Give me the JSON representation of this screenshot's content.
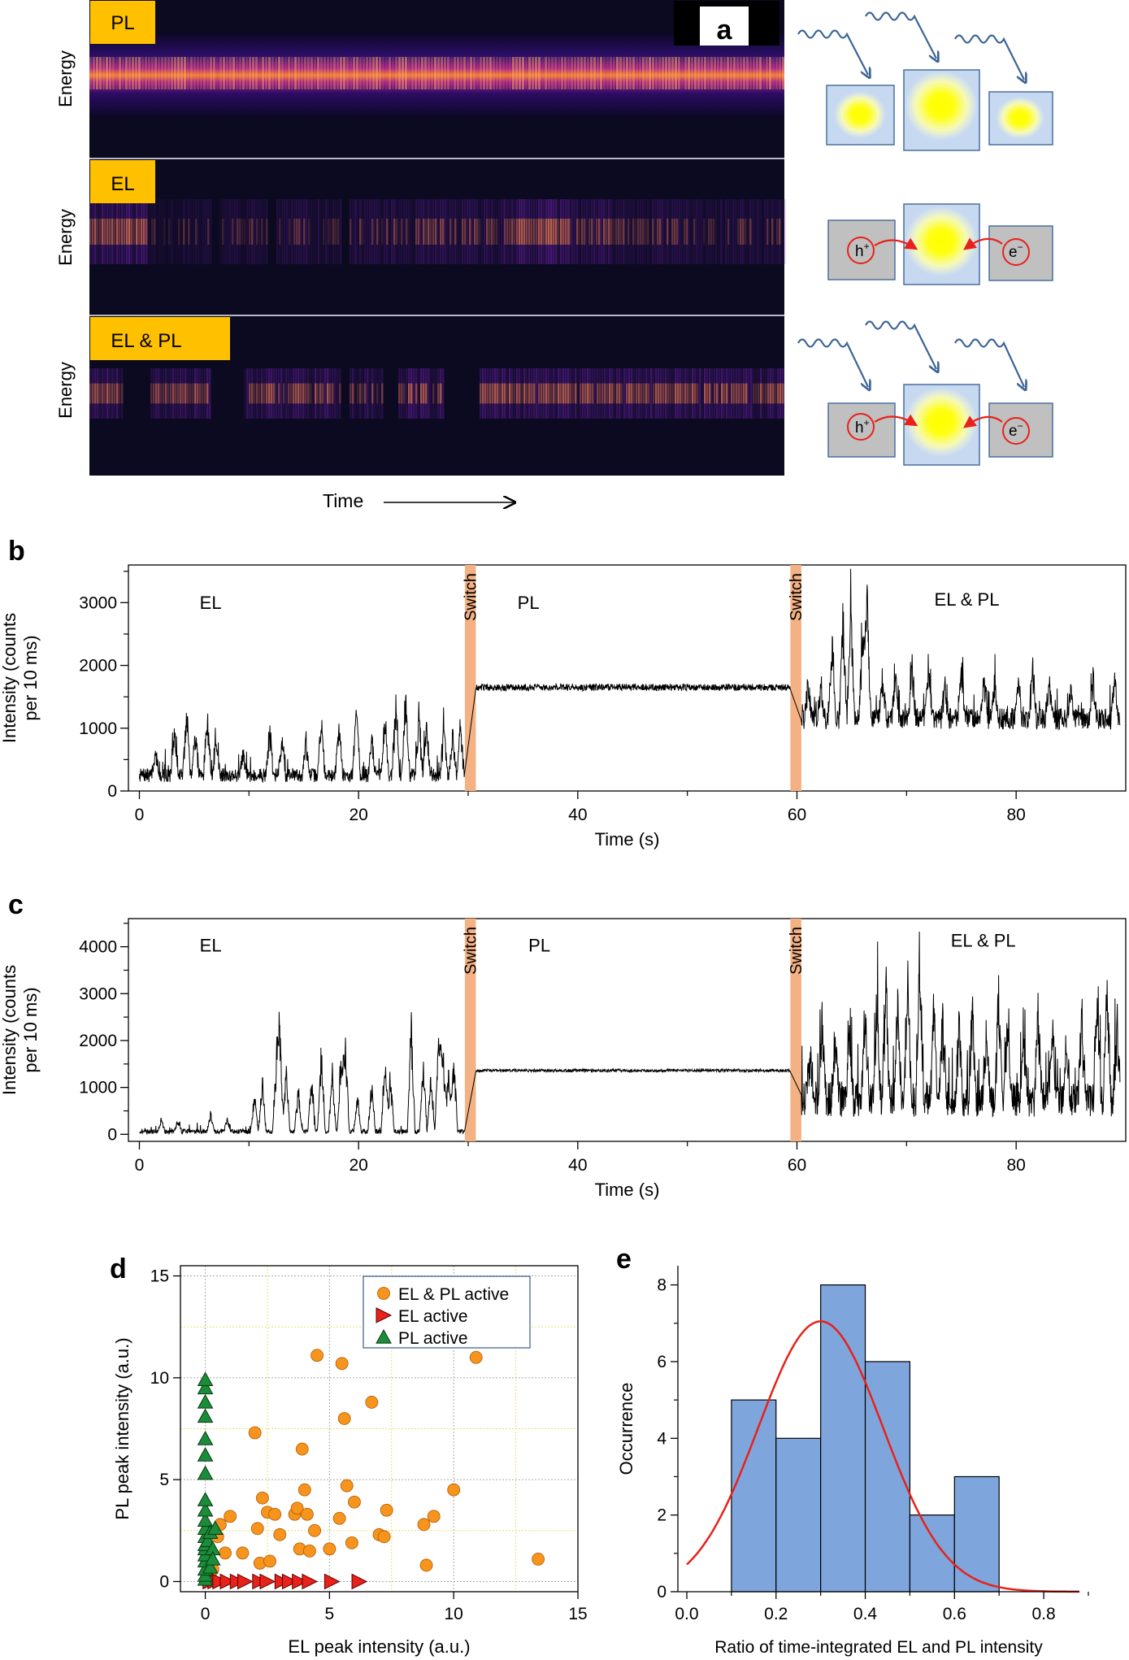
{
  "panel_a": {
    "letter": "a",
    "rows": [
      {
        "tag": "PL",
        "axis": "Energy",
        "mode": "pl"
      },
      {
        "tag": "EL",
        "axis": "Energy",
        "mode": "el"
      },
      {
        "tag": "EL & PL",
        "axis": "Energy",
        "mode": "both"
      }
    ],
    "time_label": "Time",
    "hole_label": "h",
    "hole_sup": "+",
    "electron_label": "e",
    "electron_sup": "−",
    "colors": {
      "light_blue": "#c6d9f1",
      "gray": "#c0c0c0",
      "yellow": "#ffff00",
      "tag": "#ffc000",
      "arrow": "#e8211a",
      "wave": "#3c6496"
    }
  },
  "chart_data": [
    {
      "id": "b",
      "type": "line",
      "letter": "b",
      "ylabel_line1": "Intensity (counts",
      "ylabel_line2": "per 10 ms)",
      "xlabel": "Time (s)",
      "xlim": [
        -1,
        90
      ],
      "ylim": [
        0,
        3600
      ],
      "xticks": [
        0,
        20,
        40,
        60,
        80
      ],
      "yticks": [
        0,
        1000,
        2000,
        3000
      ],
      "switch_label": "Switch",
      "switch_regions": [
        [
          29.7,
          30.7
        ],
        [
          59.4,
          60.4
        ]
      ],
      "switch_color": "#f4b183",
      "region_labels": [
        {
          "text": "EL",
          "x": 6.5,
          "y": 2900
        },
        {
          "text": "PL",
          "x": 35.5,
          "y": 2900
        },
        {
          "text": "EL & PL",
          "x": 75.5,
          "y": 2950
        }
      ],
      "segments": [
        {
          "name": "EL",
          "t0": 0,
          "t1": 29.7,
          "baseline": 250,
          "noise": 110,
          "spikes": [
            [
              1.5,
              400
            ],
            [
              3.2,
              800
            ],
            [
              4.3,
              1300
            ],
            [
              5.1,
              900
            ],
            [
              6.2,
              1200
            ],
            [
              7.0,
              700
            ],
            [
              9.5,
              450
            ],
            [
              11.9,
              900
            ],
            [
              13.0,
              800
            ],
            [
              15.2,
              700
            ],
            [
              16.6,
              1100
            ],
            [
              18.2,
              1050
            ],
            [
              19.8,
              1400
            ],
            [
              21.2,
              700
            ],
            [
              22.4,
              1100
            ],
            [
              23.4,
              1350
            ],
            [
              24.3,
              1600
            ],
            [
              25.5,
              1100
            ],
            [
              26.2,
              1000
            ],
            [
              27.8,
              900
            ],
            [
              28.6,
              800
            ],
            [
              29.3,
              950
            ]
          ]
        },
        {
          "name": "PL",
          "t0": 30.7,
          "t1": 59.4,
          "baseline": 1650,
          "noise": 55,
          "spikes": []
        },
        {
          "name": "EL & PL",
          "t0": 60.4,
          "t1": 89.5,
          "baseline": 1150,
          "noise": 170,
          "spikes": [
            [
              61.0,
              700
            ],
            [
              62.2,
              600
            ],
            [
              63.2,
              1400
            ],
            [
              64.2,
              2000
            ],
            [
              64.9,
              2300
            ],
            [
              66.0,
              1700
            ],
            [
              66.4,
              2200
            ],
            [
              67.8,
              800
            ],
            [
              69.0,
              900
            ],
            [
              70.5,
              1000
            ],
            [
              72.0,
              1100
            ],
            [
              73.5,
              700
            ],
            [
              75.0,
              900
            ],
            [
              77.1,
              800
            ],
            [
              78.0,
              700
            ],
            [
              80.2,
              800
            ],
            [
              81.5,
              1000
            ],
            [
              83.0,
              700
            ],
            [
              85.0,
              600
            ],
            [
              87.0,
              800
            ],
            [
              89.0,
              700
            ]
          ]
        }
      ],
      "seed": 7
    },
    {
      "id": "c",
      "type": "line",
      "letter": "c",
      "ylabel_line1": "Intensity (counts",
      "ylabel_line2": "per 10 ms)",
      "xlabel": "Time (s)",
      "xlim": [
        -1,
        90
      ],
      "ylim": [
        -150,
        4600
      ],
      "xticks": [
        0,
        20,
        40,
        60,
        80
      ],
      "yticks": [
        0,
        1000,
        2000,
        3000,
        4000
      ],
      "switch_label": "Switch",
      "switch_regions": [
        [
          29.7,
          30.7
        ],
        [
          59.4,
          60.4
        ]
      ],
      "switch_color": "#f4b183",
      "region_labels": [
        {
          "text": "EL",
          "x": 6.5,
          "y": 3900
        },
        {
          "text": "PL",
          "x": 36.5,
          "y": 3900
        },
        {
          "text": "EL & PL",
          "x": 77,
          "y": 4000
        }
      ],
      "segments": [
        {
          "name": "EL",
          "t0": 0,
          "t1": 29.7,
          "baseline": 60,
          "noise": 50,
          "spikes": [
            [
              2.0,
              300
            ],
            [
              3.5,
              250
            ],
            [
              6.5,
              450
            ],
            [
              8.0,
              300
            ],
            [
              10.5,
              900
            ],
            [
              11.2,
              1300
            ],
            [
              12.5,
              1900
            ],
            [
              12.8,
              2700
            ],
            [
              13.4,
              1600
            ],
            [
              14.5,
              1100
            ],
            [
              15.7,
              1300
            ],
            [
              16.6,
              2100
            ],
            [
              17.6,
              1500
            ],
            [
              18.4,
              1900
            ],
            [
              18.8,
              2300
            ],
            [
              19.9,
              900
            ],
            [
              21.2,
              1200
            ],
            [
              22.4,
              1800
            ],
            [
              22.9,
              1400
            ],
            [
              24.8,
              2700
            ],
            [
              25.9,
              1700
            ],
            [
              26.6,
              1400
            ],
            [
              27.3,
              2500
            ],
            [
              27.7,
              2100
            ],
            [
              28.2,
              1500
            ],
            [
              28.7,
              1900
            ]
          ]
        },
        {
          "name": "PL",
          "t0": 30.7,
          "t1": 59.4,
          "baseline": 1360,
          "noise": 32,
          "spikes": []
        },
        {
          "name": "EL & PL",
          "t0": 60.4,
          "t1": 89.5,
          "baseline": 750,
          "noise": 380,
          "spikes": [
            [
              61.2,
              1400
            ],
            [
              62.3,
              1900
            ],
            [
              63.5,
              1700
            ],
            [
              64.8,
              1600
            ],
            [
              66.2,
              2200
            ],
            [
              67.3,
              2300
            ],
            [
              68.1,
              3100
            ],
            [
              69.2,
              2700
            ],
            [
              70.1,
              3000
            ],
            [
              71.2,
              3800
            ],
            [
              72.5,
              2500
            ],
            [
              73.3,
              2100
            ],
            [
              74.8,
              1800
            ],
            [
              76.0,
              2300
            ],
            [
              77.3,
              1700
            ],
            [
              78.4,
              2700
            ],
            [
              79.2,
              1900
            ],
            [
              80.7,
              1500
            ],
            [
              82.0,
              2400
            ],
            [
              83.3,
              1800
            ],
            [
              84.6,
              1500
            ],
            [
              86.0,
              2100
            ],
            [
              87.4,
              2600
            ],
            [
              88.3,
              3000
            ],
            [
              89.2,
              2000
            ]
          ]
        }
      ],
      "seed": 21
    },
    {
      "id": "d",
      "type": "scatter",
      "letter": "d",
      "xlabel": "EL peak intensity (a.u.)",
      "ylabel": "PL peak intensity (a.u.)",
      "xlim": [
        -1,
        15
      ],
      "ylim": [
        -0.5,
        15.5
      ],
      "xticks": [
        0,
        5,
        10,
        15
      ],
      "yticks": [
        0,
        5,
        10,
        15
      ],
      "grid": true,
      "legend_position": "top-right",
      "series": [
        {
          "name": "EL & PL active",
          "marker": "circle",
          "color": "#f7941d",
          "points": [
            [
              0.2,
              0.3
            ],
            [
              0.3,
              0.6
            ],
            [
              0.5,
              2.2
            ],
            [
              0.6,
              2.8
            ],
            [
              0.8,
              1.4
            ],
            [
              1.0,
              3.2
            ],
            [
              1.5,
              1.4
            ],
            [
              2.0,
              7.3
            ],
            [
              2.1,
              2.6
            ],
            [
              2.2,
              0.9
            ],
            [
              2.3,
              4.1
            ],
            [
              2.5,
              3.4
            ],
            [
              2.6,
              1.0
            ],
            [
              2.8,
              3.3
            ],
            [
              3.0,
              2.3
            ],
            [
              3.6,
              3.3
            ],
            [
              3.7,
              3.6
            ],
            [
              3.8,
              1.6
            ],
            [
              3.9,
              6.5
            ],
            [
              4.0,
              4.5
            ],
            [
              4.1,
              3.3
            ],
            [
              4.2,
              1.5
            ],
            [
              4.4,
              2.5
            ],
            [
              4.5,
              11.1
            ],
            [
              5.0,
              1.6
            ],
            [
              5.4,
              3.1
            ],
            [
              5.5,
              10.7
            ],
            [
              5.6,
              8.0
            ],
            [
              5.7,
              4.7
            ],
            [
              5.9,
              1.9
            ],
            [
              6.0,
              3.9
            ],
            [
              6.7,
              8.8
            ],
            [
              7.0,
              2.3
            ],
            [
              7.2,
              2.2
            ],
            [
              7.3,
              3.5
            ],
            [
              8.8,
              2.8
            ],
            [
              8.9,
              0.8
            ],
            [
              9.2,
              3.2
            ],
            [
              10.0,
              4.5
            ],
            [
              10.9,
              11.0
            ],
            [
              13.4,
              1.1
            ]
          ]
        },
        {
          "name": "EL active",
          "marker": "triangle-right",
          "color": "#e8211a",
          "points": [
            [
              0.2,
              0
            ],
            [
              0.4,
              0
            ],
            [
              0.6,
              0
            ],
            [
              0.9,
              0
            ],
            [
              1.3,
              0
            ],
            [
              1.6,
              0
            ],
            [
              2.2,
              0
            ],
            [
              2.5,
              0
            ],
            [
              3.1,
              0
            ],
            [
              3.4,
              0
            ],
            [
              3.8,
              0
            ],
            [
              4.2,
              0
            ],
            [
              5.1,
              0
            ],
            [
              6.2,
              0
            ]
          ]
        },
        {
          "name": "PL active",
          "marker": "triangle-up",
          "color": "#1a8c3a",
          "points": [
            [
              0,
              0.1
            ],
            [
              0,
              0.3
            ],
            [
              0,
              0.6
            ],
            [
              0,
              1.0
            ],
            [
              0,
              1.3
            ],
            [
              0,
              1.6
            ],
            [
              0,
              1.8
            ],
            [
              0,
              2.2
            ],
            [
              0,
              2.6
            ],
            [
              0,
              3.0
            ],
            [
              0,
              3.5
            ],
            [
              0,
              4.0
            ],
            [
              0,
              5.3
            ],
            [
              0,
              6.2
            ],
            [
              0,
              7.0
            ],
            [
              0,
              8.1
            ],
            [
              0,
              8.8
            ],
            [
              0,
              9.5
            ],
            [
              0,
              9.9
            ],
            [
              0.1,
              2.0
            ],
            [
              0.2,
              2.4
            ],
            [
              0.3,
              1.6
            ],
            [
              0.4,
              2.6
            ],
            [
              0.2,
              0.7
            ],
            [
              0.3,
              1.1
            ]
          ]
        }
      ]
    },
    {
      "id": "e",
      "type": "bar",
      "letter": "e",
      "xlabel": "Ratio of time-integrated EL and PL intensity",
      "ylabel": "Occurrence",
      "xlim": [
        -0.02,
        0.88
      ],
      "ylim": [
        0,
        8.5
      ],
      "xticks": [
        0.0,
        0.2,
        0.4,
        0.6,
        0.8
      ],
      "yticks": [
        0,
        2,
        4,
        6,
        8
      ],
      "bin_edges": [
        0.1,
        0.2,
        0.3,
        0.4,
        0.5,
        0.6,
        0.7
      ],
      "values": [
        5,
        4,
        8,
        6,
        2,
        3
      ],
      "bar_color": "#7ea6dc",
      "fit": {
        "type": "gaussian",
        "amplitude": 7.05,
        "mean": 0.3,
        "sigma": 0.14,
        "color": "#e8211a"
      }
    }
  ]
}
